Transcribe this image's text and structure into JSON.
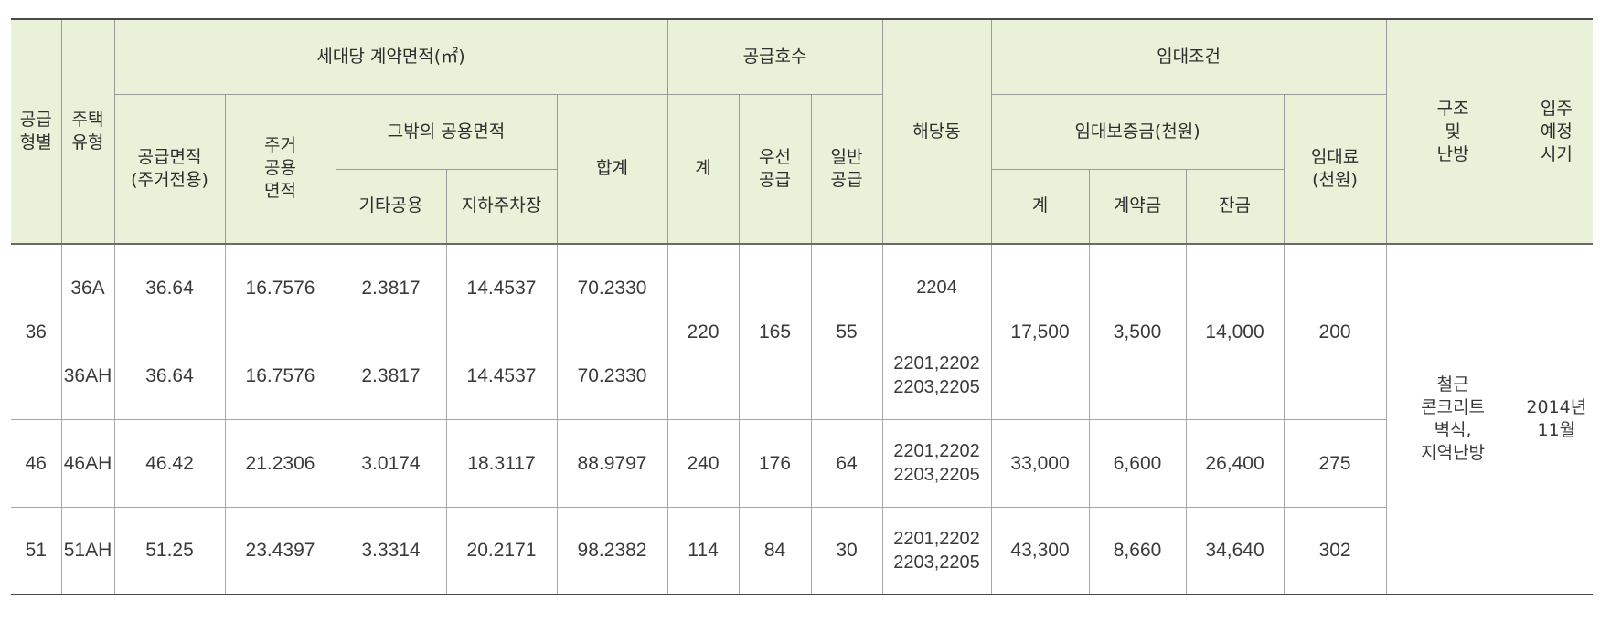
{
  "headers": {
    "supply_type": [
      "공급",
      "형별"
    ],
    "house_type": [
      "주택",
      "유형"
    ],
    "contract_area": "세대당 계약면적(㎡)",
    "supply_area": [
      "공급면적",
      "(주거전용)"
    ],
    "residential_common": [
      "주거",
      "공용",
      "면적"
    ],
    "other_common": "그밖의 공용면적",
    "other_common_etc": "기타공용",
    "other_common_parking": "지하주차장",
    "area_total": "합계",
    "supply_units": "공급호수",
    "units_total": "계",
    "units_priority": [
      "우선",
      "공급"
    ],
    "units_general": [
      "일반",
      "공급"
    ],
    "building": "해당동",
    "rent_terms": "임대조건",
    "deposit": "임대보증금(천원)",
    "deposit_total": "계",
    "deposit_contract": "계약금",
    "deposit_balance": "잔금",
    "rent": [
      "임대료",
      "(천원)"
    ],
    "structure": [
      "구조",
      "및",
      "난방"
    ],
    "move_in": [
      "입주",
      "예정",
      "시기"
    ]
  },
  "groups": [
    {
      "supply_type": "36",
      "units_total": "220",
      "units_priority": "165",
      "units_general": "55",
      "deposit_total": "17,500",
      "deposit_contract": "3,500",
      "deposit_balance": "14,000",
      "rent": "200",
      "rows": [
        {
          "house_type": "36A",
          "supply_area": "36.64",
          "residential_common": "16.7576",
          "other_etc": "2.3817",
          "other_parking": "14.4537",
          "area_total": "70.2330",
          "building": [
            "2204"
          ]
        },
        {
          "house_type": "36AH",
          "supply_area": "36.64",
          "residential_common": "16.7576",
          "other_etc": "2.3817",
          "other_parking": "14.4537",
          "area_total": "70.2330",
          "building": [
            "2201,2202",
            "2203,2205"
          ]
        }
      ]
    },
    {
      "supply_type": "46",
      "units_total": "240",
      "units_priority": "176",
      "units_general": "64",
      "deposit_total": "33,000",
      "deposit_contract": "6,600",
      "deposit_balance": "26,400",
      "rent": "275",
      "rows": [
        {
          "house_type": "46AH",
          "supply_area": "46.42",
          "residential_common": "21.2306",
          "other_etc": "3.0174",
          "other_parking": "18.3117",
          "area_total": "88.9797",
          "building": [
            "2201,2202",
            "2203,2205"
          ]
        }
      ]
    },
    {
      "supply_type": "51",
      "units_total": "114",
      "units_priority": "84",
      "units_general": "30",
      "deposit_total": "43,300",
      "deposit_contract": "8,660",
      "deposit_balance": "34,640",
      "rent": "302",
      "rows": [
        {
          "house_type": "51AH",
          "supply_area": "51.25",
          "residential_common": "23.4397",
          "other_etc": "3.3314",
          "other_parking": "20.2171",
          "area_total": "98.2382",
          "building": [
            "2201,2202",
            "2203,2205"
          ]
        }
      ]
    }
  ],
  "structure": [
    "철근",
    "콘크리트",
    "벽식,",
    "지역난방"
  ],
  "move_in": [
    "2014년",
    "11월"
  ]
}
